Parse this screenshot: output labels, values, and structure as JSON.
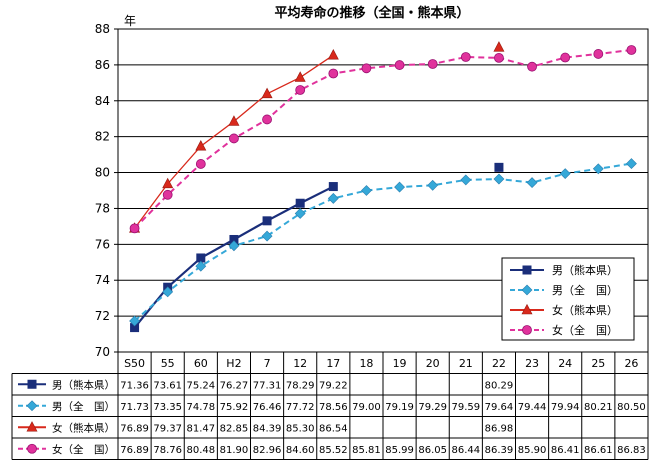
{
  "chart_data": {
    "type": "line",
    "title": "平均寿命の推移（全国・熊本県）",
    "ylabel": "年",
    "ylim": [
      70,
      88
    ],
    "yticks": [
      70,
      72,
      74,
      76,
      78,
      80,
      82,
      84,
      86,
      88
    ],
    "grid": true,
    "legend_position": "right, lower half of plot area",
    "categories": [
      "S50",
      "55",
      "60",
      "H2",
      "7",
      "12",
      "17",
      "18",
      "19",
      "20",
      "21",
      "22",
      "23",
      "24",
      "25",
      "26"
    ],
    "series": [
      {
        "name": "男（熊本県）",
        "table_label": "男（熊本県）",
        "color": "#1a2e7a",
        "dash": "solid",
        "marker": "square",
        "values": [
          71.36,
          73.61,
          75.24,
          76.27,
          77.31,
          78.29,
          79.22,
          null,
          null,
          null,
          null,
          80.29,
          null,
          null,
          null,
          null
        ],
        "connected_until_index": 6
      },
      {
        "name": "男（全　国）",
        "table_label": "男（全　国）",
        "color": "#35a8d8",
        "dash": "dashed",
        "marker": "diamond",
        "values": [
          71.73,
          73.35,
          74.78,
          75.92,
          76.46,
          77.72,
          78.56,
          79.0,
          79.19,
          79.29,
          79.59,
          79.64,
          79.44,
          79.94,
          80.21,
          80.5
        ],
        "connected_until_index": 15
      },
      {
        "name": "女（熊本県）",
        "table_label": "女（熊本県）",
        "color": "#d8291c",
        "dash": "solid",
        "marker": "triangle",
        "values": [
          76.89,
          79.37,
          81.47,
          82.85,
          84.39,
          85.3,
          86.54,
          null,
          null,
          null,
          null,
          86.98,
          null,
          null,
          null,
          null
        ],
        "connected_until_index": 6
      },
      {
        "name": "女（全　国）",
        "table_label": "女（全　国）",
        "color": "#e0329c",
        "dash": "dashed",
        "marker": "circle",
        "values": [
          76.89,
          78.76,
          80.48,
          81.9,
          82.96,
          84.6,
          85.52,
          85.81,
          85.99,
          86.05,
          86.44,
          86.39,
          85.9,
          86.41,
          86.61,
          86.83
        ],
        "connected_until_index": 15
      }
    ]
  }
}
